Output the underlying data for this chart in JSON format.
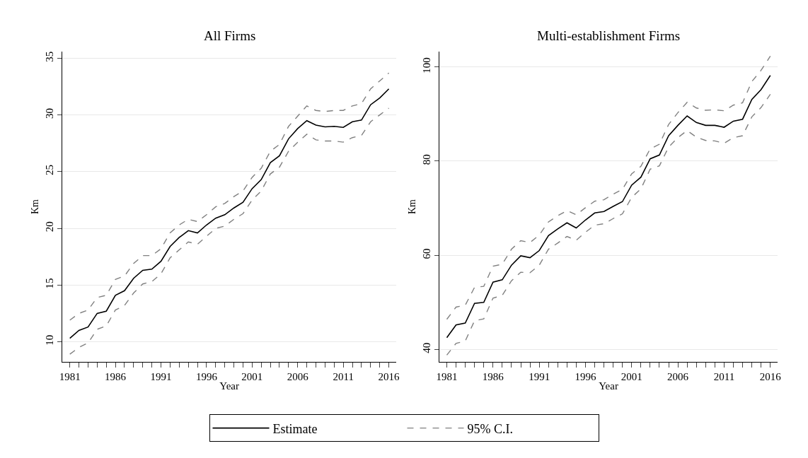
{
  "chart_data": [
    {
      "type": "line",
      "title": "All Firms",
      "xlabel": "Year",
      "ylabel": "Km",
      "x": [
        1981,
        1982,
        1983,
        1984,
        1985,
        1986,
        1987,
        1988,
        1989,
        1990,
        1991,
        1992,
        1993,
        1994,
        1995,
        1996,
        1997,
        1998,
        1999,
        2000,
        2001,
        2002,
        2003,
        2004,
        2005,
        2006,
        2007,
        2008,
        2009,
        2010,
        2011,
        2012,
        2013,
        2014,
        2015,
        2016
      ],
      "series": [
        {
          "name": "Estimate",
          "color": "#000000",
          "line_style": "solid",
          "values": [
            10.3,
            11.0,
            11.3,
            12.5,
            12.7,
            14.1,
            14.5,
            15.6,
            16.3,
            16.4,
            17.1,
            18.4,
            19.2,
            19.8,
            19.6,
            20.3,
            20.9,
            21.2,
            21.8,
            22.3,
            23.5,
            24.3,
            25.8,
            26.4,
            27.9,
            28.8,
            29.5,
            29.1,
            28.95,
            29.0,
            28.9,
            29.4,
            29.55,
            30.9,
            31.5,
            32.3
          ]
        },
        {
          "name": "95% C.I.",
          "color": "#808080",
          "line_style": "dashed",
          "values": [
            11.9,
            12.5,
            12.8,
            13.9,
            14.1,
            15.5,
            15.8,
            16.9,
            17.6,
            17.6,
            18.2,
            19.6,
            20.3,
            20.8,
            20.6,
            21.2,
            21.9,
            22.2,
            22.8,
            23.3,
            24.5,
            25.3,
            26.8,
            27.4,
            29.0,
            29.9,
            30.8,
            30.4,
            30.3,
            30.4,
            30.4,
            30.8,
            31.0,
            32.3,
            33.0,
            33.7
          ]
        },
        {
          "color": "#808080",
          "line_style": "dashed",
          "values": [
            8.9,
            9.5,
            9.9,
            11.1,
            11.4,
            12.8,
            13.2,
            14.3,
            15.1,
            15.3,
            16.0,
            17.4,
            18.1,
            18.8,
            18.6,
            19.3,
            20.0,
            20.2,
            20.8,
            21.3,
            22.5,
            23.3,
            24.8,
            25.4,
            26.8,
            27.6,
            28.3,
            27.8,
            27.7,
            27.7,
            27.6,
            28.0,
            28.2,
            29.4,
            30.0,
            30.6
          ]
        }
      ],
      "xlim": [
        1980.2,
        2016.8
      ],
      "xticks": [
        1981,
        1986,
        1991,
        1996,
        2001,
        2006,
        2011,
        2016
      ],
      "ylim": [
        8.2,
        35.6
      ],
      "yticks": [
        10,
        15,
        20,
        25,
        30,
        35
      ],
      "grid": "y",
      "legend": "bottom",
      "marker": "none"
    },
    {
      "type": "line",
      "title": "Multi-establishment Firms",
      "xlabel": "Year",
      "ylabel": "Km",
      "x": [
        1981,
        1982,
        1983,
        1984,
        1985,
        1986,
        1987,
        1988,
        1989,
        1990,
        1991,
        1992,
        1993,
        1994,
        1995,
        1996,
        1997,
        1998,
        1999,
        2000,
        2001,
        2002,
        2003,
        2004,
        2005,
        2006,
        2007,
        2008,
        2009,
        2010,
        2011,
        2012,
        2013,
        2014,
        2015,
        2016
      ],
      "series": [
        {
          "name": "Estimate",
          "color": "#000000",
          "line_style": "solid",
          "values": [
            42.5,
            45.2,
            45.6,
            49.8,
            50.0,
            54.3,
            54.8,
            57.9,
            59.9,
            59.5,
            61.0,
            64.2,
            65.6,
            66.9,
            65.8,
            67.5,
            69.0,
            69.3,
            70.4,
            71.4,
            74.9,
            76.6,
            80.5,
            81.3,
            85.4,
            87.6,
            89.6,
            88.2,
            87.6,
            87.6,
            87.2,
            88.5,
            88.9,
            93.1,
            95.2,
            98.2
          ]
        },
        {
          "name": "95% C.I.",
          "color": "#808080",
          "line_style": "dashed",
          "values": [
            46.4,
            49.0,
            49.4,
            53.2,
            53.4,
            57.7,
            58.1,
            61.3,
            63.1,
            62.7,
            64.3,
            67.1,
            68.4,
            69.5,
            68.6,
            70.1,
            71.5,
            71.8,
            73.0,
            74.0,
            77.3,
            78.9,
            82.6,
            83.6,
            87.8,
            90.3,
            92.5,
            91.3,
            90.8,
            90.9,
            90.7,
            91.9,
            92.4,
            96.9,
            99.3,
            102.3
          ]
        },
        {
          "color": "#808080",
          "line_style": "dashed",
          "values": [
            38.8,
            41.3,
            41.8,
            46.1,
            46.5,
            50.9,
            51.5,
            54.6,
            56.4,
            56.3,
            57.9,
            61.3,
            62.6,
            64.0,
            63.2,
            64.9,
            66.4,
            66.7,
            67.8,
            68.8,
            72.3,
            74.1,
            78.3,
            79.0,
            83.0,
            85.0,
            86.5,
            85.1,
            84.4,
            84.3,
            83.8,
            85.0,
            85.4,
            89.4,
            91.4,
            94.2
          ]
        }
      ],
      "xlim": [
        1980.2,
        2016.8
      ],
      "xticks": [
        1981,
        1986,
        1991,
        1996,
        2001,
        2006,
        2011,
        2016
      ],
      "ylim": [
        37.3,
        103.3
      ],
      "yticks": [
        40,
        60,
        80,
        100
      ],
      "grid": "y",
      "legend": "bottom",
      "marker": "none"
    }
  ]
}
